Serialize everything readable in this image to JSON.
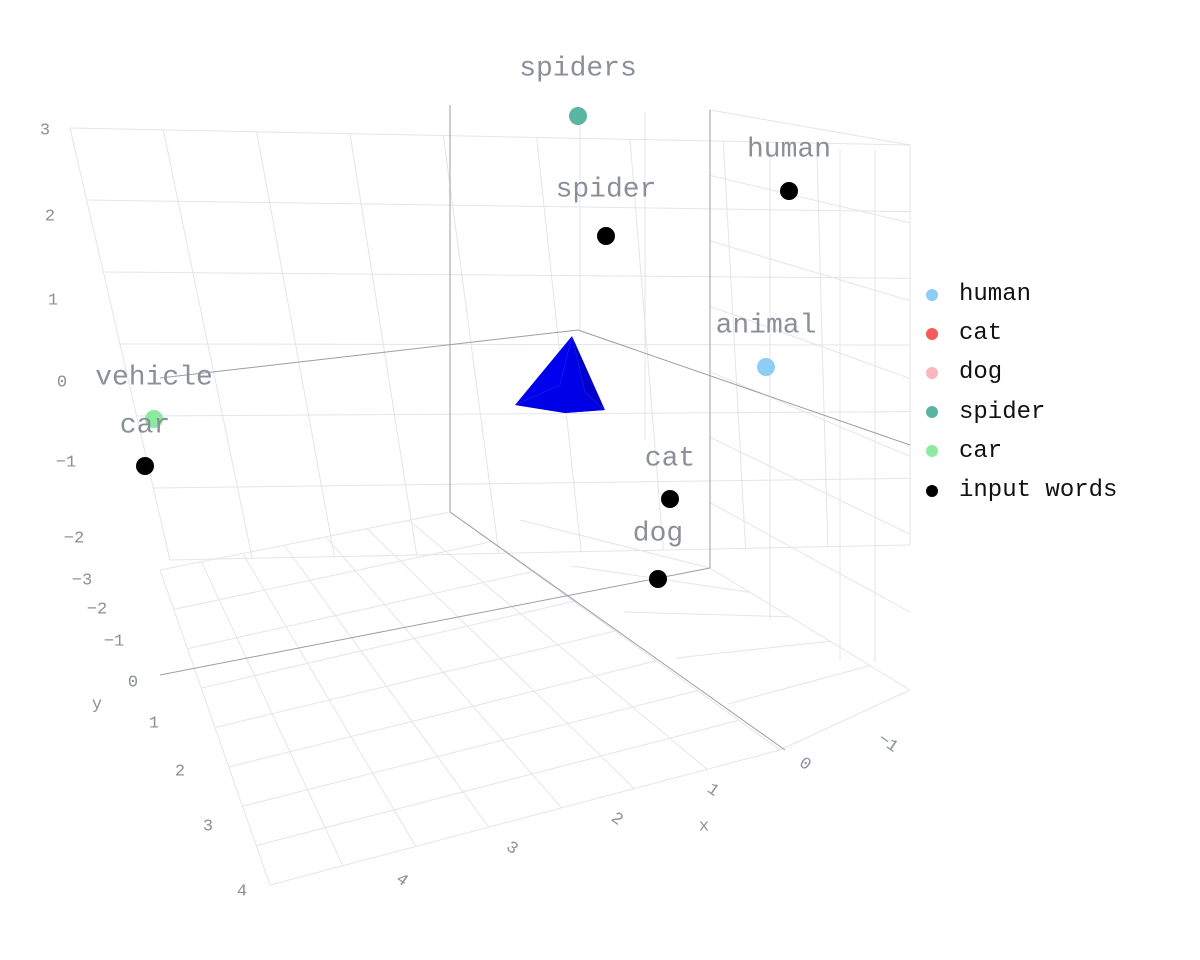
{
  "chart_data": {
    "type": "scatter3d",
    "axes": {
      "x": {
        "label": "x",
        "ticks": [
          "−1",
          "0",
          "1",
          "2",
          "3",
          "4"
        ]
      },
      "y": {
        "label": "y",
        "ticks": [
          "−3",
          "−2",
          "−1",
          "0",
          "1",
          "2",
          "3",
          "4"
        ]
      },
      "z": {
        "label": "",
        "ticks": [
          "−2",
          "−1",
          "0",
          "1",
          "2",
          "3"
        ]
      }
    },
    "legend_placement": "right",
    "series": [
      {
        "name": "human",
        "color": "#8ecdf8",
        "points": [
          {
            "label": "animal",
            "x": -0.8,
            "y": -3.0,
            "z": 0.1
          }
        ]
      },
      {
        "name": "cat",
        "color": "#f55b5b",
        "points": []
      },
      {
        "name": "dog",
        "color": "#f9b6bb",
        "points": []
      },
      {
        "name": "spider",
        "color": "#5bb5a2",
        "points": [
          {
            "label": "spiders",
            "x": 0.8,
            "y": -0.7,
            "z": 3.0
          }
        ]
      },
      {
        "name": "car",
        "color": "#8aeaa0",
        "points": [
          {
            "label": "vehicle",
            "x": 3.0,
            "y": 0.8,
            "z": -0.5
          }
        ]
      },
      {
        "name": "input words",
        "color": "#000000",
        "points": [
          {
            "label": "human",
            "x": -1.0,
            "y": -2.0,
            "z": 2.6
          },
          {
            "label": "spider",
            "x": 0.8,
            "y": -0.7,
            "z": 1.9
          },
          {
            "label": "cat",
            "x": 0.0,
            "y": -0.4,
            "z": -1.1
          },
          {
            "label": "dog",
            "x": 0.4,
            "y": 0.1,
            "z": -1.9
          },
          {
            "label": "car",
            "x": 3.8,
            "y": 1.2,
            "z": -1.0
          }
        ]
      }
    ],
    "cone": {
      "color": "#0000ee",
      "x": 1.1,
      "y": -0.6,
      "z": 0.0
    }
  }
}
